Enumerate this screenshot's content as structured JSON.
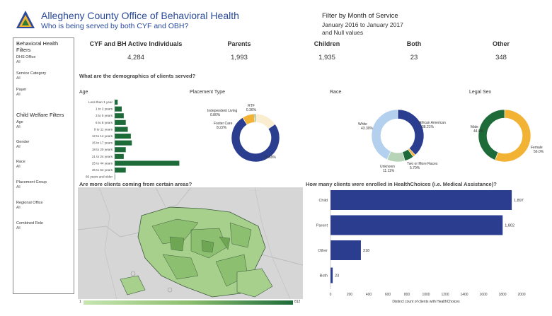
{
  "header": {
    "title": "Allegheny County Office of Behavioral Health",
    "subtitle": "Who is being served by both CYF and OBH?",
    "brand_colors": {
      "blue": "#2a4a9b",
      "green": "#2e7d32",
      "yellow": "#f2b233"
    }
  },
  "filter_summary": {
    "title": "Filter by Month of Service",
    "range": "January 2016 to January 2017",
    "extra": "and Null values"
  },
  "sidebar": {
    "bh_heading": "Behavioral Health Filters",
    "bh_filters": [
      {
        "label": "DHS Office",
        "value": "All"
      },
      {
        "label": "Service Category",
        "value": "All"
      },
      {
        "label": "Payer",
        "value": "All"
      }
    ],
    "cw_heading": "Child Welfare Filters",
    "cw_filters": [
      {
        "label": "Age",
        "value": "All"
      },
      {
        "label": "Gender",
        "value": "All"
      },
      {
        "label": "Race",
        "value": "All"
      },
      {
        "label": "Placement Group",
        "value": "All"
      },
      {
        "label": "Regional Office",
        "value": "All"
      },
      {
        "label": "Combined Role",
        "value": "All"
      }
    ]
  },
  "metrics": [
    {
      "label": "CYF and BH Active Individuals",
      "value": "4,284"
    },
    {
      "label": "Parents",
      "value": "1,993"
    },
    {
      "label": "Children",
      "value": "1,935"
    },
    {
      "label": "Both",
      "value": "23"
    },
    {
      "label": "Other",
      "value": "348"
    }
  ],
  "questions": {
    "demographics": "What are the demographics of clients served?",
    "areas": "Are more clients coming from certain areas?",
    "healthchoices": "How many clients were enrolled in HealthChoices (i.e. Medical Assistance)?"
  },
  "map_legend": {
    "min": "1",
    "max": "812"
  },
  "chart_data": [
    {
      "type": "bar",
      "title": "Age",
      "orientation": "horizontal",
      "categories": [
        "Less than 1 year",
        "1 to 2 years",
        "3 to 5 years",
        "6 to 8 years",
        "9 to 11 years",
        "12 to 14 years",
        "15 to 17 years",
        "18 to 20 years",
        "21 to 24 years",
        "25 to 44 years",
        "45 to 64 years",
        "65 years and older"
      ],
      "values": [
        1.5,
        3.5,
        4.5,
        5.5,
        6.5,
        8,
        8.5,
        5.5,
        4.5,
        32,
        5.5,
        0.2
      ],
      "xticks": [
        "0%",
        "10%",
        "20%",
        "30%"
      ],
      "xlim": [
        0,
        35
      ],
      "color": "#1e6b3a"
    },
    {
      "type": "pie",
      "title": "Placement Type",
      "donut": true,
      "slices": [
        {
          "name": "RTF",
          "label": "RTF",
          "pct_label": "0.36%",
          "value": 0.36,
          "color": "#7a7a7a"
        },
        {
          "name": "Other",
          "label": "",
          "pct_label": "",
          "value": 14.93,
          "color": "#fbeed0"
        },
        {
          "name": "",
          "label": "",
          "pct_label": "75.69%",
          "value": 75.69,
          "color": "#2a3d8f"
        },
        {
          "name": "Foster Care",
          "label": "Foster Care",
          "pct_label": "8.22%",
          "value": 8.22,
          "color": "#f2b233"
        },
        {
          "name": "Independent Living",
          "label": "Independent Living",
          "pct_label": "0.80%",
          "value": 0.8,
          "color": "#2e7d32"
        }
      ]
    },
    {
      "type": "pie",
      "title": "Race",
      "donut": true,
      "slices": [
        {
          "name": "African American",
          "label": "African American",
          "pct_label": "38.21%",
          "value": 38.21,
          "color": "#2a3d8f"
        },
        {
          "name": "Other",
          "label": "",
          "pct_label": "",
          "value": 1.6,
          "color": "#f2b233"
        },
        {
          "name": "Two or More Races",
          "label": "Two or More Races",
          "pct_label": "5.70%",
          "value": 5.7,
          "color": "#1e6b3a"
        },
        {
          "name": "Unknown",
          "label": "Unknown",
          "pct_label": "11.11%",
          "value": 11.11,
          "color": "#b8d4b8"
        },
        {
          "name": "White",
          "label": "White",
          "pct_label": "43.30%",
          "value": 43.3,
          "color": "#b3d1ee"
        }
      ]
    },
    {
      "type": "pie",
      "title": "Legal Sex",
      "donut": true,
      "slices": [
        {
          "name": "Female",
          "label": "Female",
          "pct_label": "56.0%",
          "value": 56.0,
          "color": "#f2b233"
        },
        {
          "name": "Male",
          "label": "Male",
          "pct_label": "44.0%",
          "value": 44.0,
          "color": "#1e6b3a"
        }
      ]
    },
    {
      "type": "bar",
      "title": "",
      "orientation": "horizontal",
      "categories": [
        "Child",
        "Parent",
        "Other",
        "Both"
      ],
      "values": [
        1897,
        1802,
        318,
        23
      ],
      "value_labels": [
        "1,897",
        "1,802",
        "318",
        "23"
      ],
      "xticks": [
        "0",
        "200",
        "400",
        "600",
        "800",
        "1000",
        "1200",
        "1400",
        "1600",
        "1800",
        "2000"
      ],
      "xlim": [
        0,
        2000
      ],
      "xlabel": "Distinct count of clients with HealthChoices",
      "color": "#2a3d8f"
    }
  ]
}
